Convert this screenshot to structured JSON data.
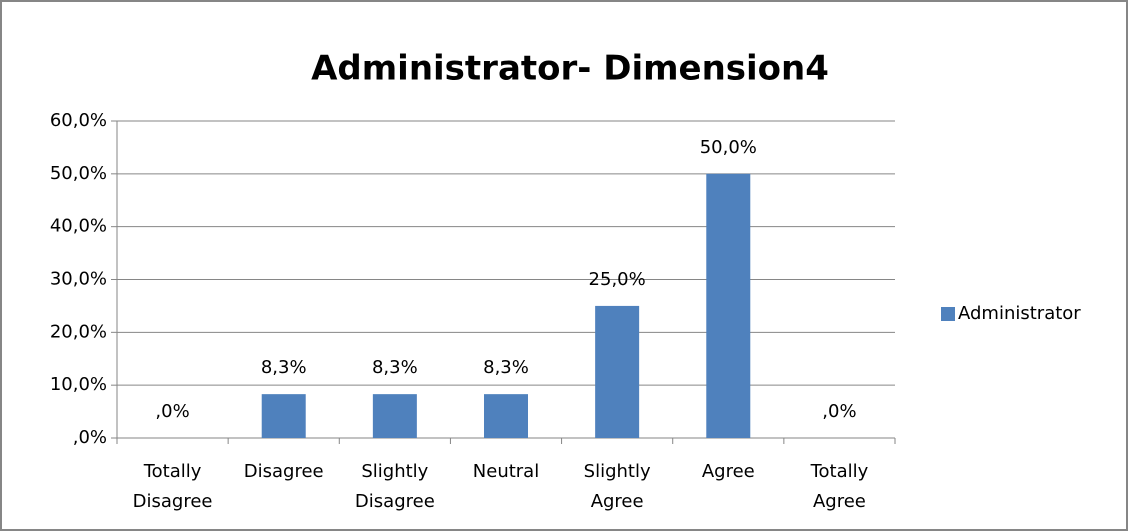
{
  "chart_data": {
    "type": "bar",
    "title": "Administrator- Dimension4",
    "categories": [
      "Totally Disagree",
      "Disagree",
      "Slightly Disagree",
      "Neutral",
      "Slightly Agree",
      "Agree",
      "Totally Agree"
    ],
    "series": [
      {
        "name": "Administrator",
        "color": "#4f81bd",
        "values": [
          0,
          8.3,
          8.3,
          8.3,
          25,
          50,
          0
        ],
        "value_labels": [
          ",0%",
          "8,3%",
          "8,3%",
          "8,3%",
          "25,0%",
          "50,0%",
          ",0%"
        ]
      }
    ],
    "ylim": [
      0,
      60
    ],
    "yticks": [
      {
        "value": 0,
        "label": ",0%"
      },
      {
        "value": 10,
        "label": "10,0%"
      },
      {
        "value": 20,
        "label": "20,0%"
      },
      {
        "value": 30,
        "label": "30,0%"
      },
      {
        "value": 40,
        "label": "40,0%"
      },
      {
        "value": 50,
        "label": "50,0%"
      },
      {
        "value": 60,
        "label": "60,0%"
      }
    ],
    "grid": true,
    "legend": "right"
  }
}
